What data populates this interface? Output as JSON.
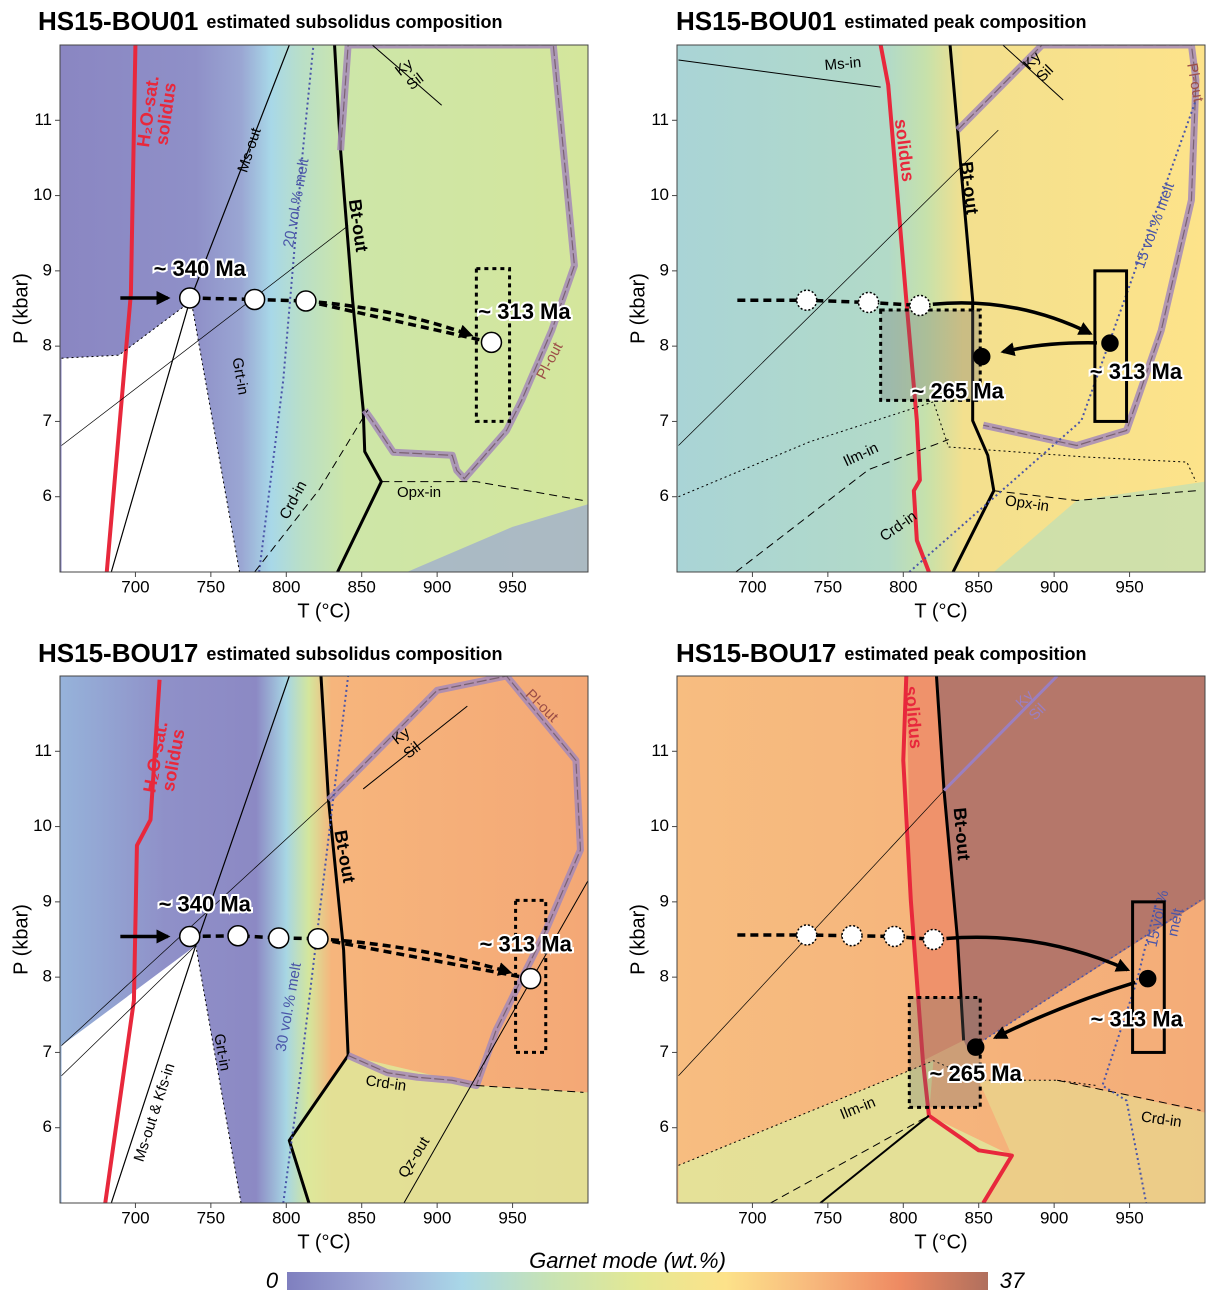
{
  "chart_data": [
    {
      "type": "phase-diagram",
      "title": "HS15-BOU01",
      "subtitle": "estimated subsolidus composition",
      "x_label": "T (°C)",
      "y_label": "P (kbar)",
      "xlim": [
        650,
        1000
      ],
      "ylim": [
        5,
        12
      ],
      "xticks": [
        700,
        750,
        800,
        850,
        900,
        950
      ],
      "yticks": [
        6,
        7,
        8,
        9,
        10,
        11
      ],
      "lines": [
        {
          "name": [
            "H₂O-sat.",
            "solidus"
          ],
          "color": "#e8283c",
          "style": "solid",
          "width": 4,
          "label_bold": true,
          "x": [
            681,
            697,
            700
          ],
          "y": [
            5,
            8.7,
            12
          ]
        },
        {
          "name": "Bt-out",
          "color": "#000000",
          "style": "solid",
          "width": 3,
          "label_bold": true,
          "x": [
            832,
            836,
            844,
            851,
            852,
            863,
            834
          ],
          "y": [
            12,
            10.6,
            8.6,
            7.15,
            6.6,
            6.2,
            5
          ]
        },
        {
          "name": "Pl-out",
          "color": "#a58ab8",
          "label_color": "#9c4f48",
          "style": "solid",
          "width": 7,
          "x": [
            836,
            841,
            977,
            991,
            976,
            956,
            946,
            918,
            913,
            910,
            871,
            857,
            852
          ],
          "y": [
            10.6,
            12,
            12,
            9.07,
            8.21,
            7.28,
            6.88,
            6.24,
            6.35,
            6.55,
            6.59,
            7.01,
            7.15
          ]
        },
        {
          "name": "Ms-out",
          "color": "#000000",
          "style": "solid",
          "width": 1.2,
          "x": [
            684,
            736,
            802
          ],
          "y": [
            5,
            8.6,
            12
          ]
        },
        {
          "name": "Grt-in",
          "color": "#000000",
          "style": "dotted",
          "width": 1,
          "x": [
            769,
            737
          ],
          "y": [
            5,
            8.6
          ]
        },
        {
          "color": "#000000",
          "style": "dotted",
          "width": 1,
          "x": [
            651,
            689,
            737
          ],
          "y": [
            7.84,
            7.88,
            8.6
          ]
        },
        {
          "name": "20 vol.% melt",
          "color": "#4a55a8",
          "style": "dotted",
          "width": 2,
          "x": [
            782,
            798,
            811,
            818
          ],
          "y": [
            5,
            7.55,
            10.6,
            12
          ]
        },
        {
          "name": "Crd-in",
          "color": "#000000",
          "style": "dashed",
          "width": 1,
          "x": [
            779,
            822,
            854
          ],
          "y": [
            5,
            6.1,
            7.15
          ]
        },
        {
          "name": "Opx-in",
          "color": "#000000",
          "style": "dashed",
          "width": 1,
          "x": [
            863,
            926,
            997
          ],
          "y": [
            6.2,
            6.2,
            5.95
          ]
        },
        {
          "name": [
            "Ky",
            "Sil"
          ],
          "color": "#000000",
          "style": "solid",
          "width": 1,
          "x": [
            857,
            903
          ],
          "y": [
            12,
            11.2
          ]
        },
        {
          "color": "#000000",
          "style": "solid",
          "width": 0.7,
          "x": [
            651,
            841
          ],
          "y": [
            6.68,
            9.6
          ]
        }
      ],
      "points": {
        "x": [
          736,
          779,
          813,
          936
        ],
        "y": [
          8.64,
          8.62,
          8.6,
          8.05
        ],
        "fill": [
          "#ffffff",
          "#ffffff",
          "#ffffff",
          "#ffffff"
        ],
        "labels": [
          "~ 340 Ma",
          null,
          null,
          "~ 313 Ma"
        ]
      },
      "boxes": [
        {
          "style": "dotted",
          "x": [
            926,
            948
          ],
          "y": [
            7.0,
            9.03
          ]
        }
      ]
    },
    {
      "type": "phase-diagram",
      "title": "HS15-BOU01",
      "subtitle": "estimated peak composition",
      "x_label": "T (°C)",
      "y_label": "P (kbar)",
      "xlim": [
        650,
        1000
      ],
      "ylim": [
        5,
        12
      ],
      "xticks": [
        700,
        750,
        800,
        850,
        900,
        950
      ],
      "yticks": [
        6,
        7,
        8,
        9,
        10,
        11
      ],
      "lines": [
        {
          "name": "solidus",
          "color": "#e8283c",
          "style": "solid",
          "width": 4,
          "label_bold": true,
          "x": [
            785,
            790,
            802,
            809,
            811,
            807,
            809,
            817
          ],
          "y": [
            12,
            11.47,
            8.61,
            7.01,
            6.22,
            6.08,
            5.42,
            5
          ]
        },
        {
          "name": "Bt-out",
          "color": "#000000",
          "style": "solid",
          "width": 3,
          "label_bold": true,
          "x": [
            831,
            836,
            846,
            846,
            856,
            860,
            833
          ],
          "y": [
            12,
            10.87,
            8.61,
            7.01,
            6.55,
            6.08,
            5
          ]
        },
        {
          "name": "Pl-out",
          "color": "#a58ab8",
          "label_color": "#9c4f48",
          "style": "solid",
          "width": 7,
          "x": [
            836,
            892,
            991,
            994,
            991,
            971,
            955,
            948,
            915,
            853
          ],
          "y": [
            10.87,
            12,
            12,
            11.53,
            9.94,
            8.21,
            7.28,
            6.88,
            6.68,
            6.95
          ]
        },
        {
          "name": "Ms-in",
          "color": "#000000",
          "style": "solid",
          "width": 1,
          "x": [
            651,
            785
          ],
          "y": [
            11.8,
            11.44
          ]
        },
        {
          "name": "Ilm-in",
          "color": "#000000",
          "style": "dotted",
          "width": 1,
          "x": [
            651,
            738,
            820,
            830,
            919,
            988,
            994
          ],
          "y": [
            6.0,
            6.73,
            7.26,
            6.66,
            6.53,
            6.46,
            6.2
          ]
        },
        {
          "name": "Crd-in",
          "color": "#000000",
          "style": "dashed",
          "width": 1,
          "x": [
            689,
            777,
            830
          ],
          "y": [
            5,
            6.36,
            6.76
          ]
        },
        {
          "name": "Opx-in",
          "color": "#000000",
          "style": "dashed",
          "width": 1,
          "x": [
            860,
            915,
            994
          ],
          "y": [
            6.08,
            5.95,
            6.08
          ]
        },
        {
          "name": "15 vol.% melt",
          "color": "#4a55a8",
          "style": "dotted",
          "width": 2,
          "x": [
            804,
            918,
            994
          ],
          "y": [
            5,
            7.01,
            11.27
          ]
        },
        {
          "color": "#000000",
          "style": "solid",
          "width": 0.7,
          "x": [
            651,
            863
          ],
          "y": [
            6.68,
            10.87
          ]
        },
        {
          "name": [
            "Ky",
            "Sil"
          ],
          "color": "#000000",
          "style": "solid",
          "width": 1,
          "x": [
            866,
            906
          ],
          "y": [
            12,
            11.27
          ]
        }
      ],
      "points": {
        "x": [
          736,
          777,
          811,
          937,
          852
        ],
        "y": [
          8.61,
          8.58,
          8.54,
          8.04,
          7.86
        ],
        "fill": [
          "#ffffff",
          "#ffffff",
          "#ffffff",
          "#000000",
          "#000000"
        ],
        "labels": [
          null,
          null,
          null,
          "~ 313 Ma",
          "~ 265 Ma"
        ]
      },
      "boxes": [
        {
          "style": "dotted",
          "x": [
            785,
            851
          ],
          "y": [
            7.28,
            8.48
          ]
        },
        {
          "style": "solid",
          "x": [
            927,
            948
          ],
          "y": [
            7.0,
            9.0
          ]
        }
      ]
    },
    {
      "type": "phase-diagram",
      "title": "HS15-BOU17",
      "subtitle": "estimated subsolidus composition",
      "x_label": "T (°C)",
      "y_label": "P (kbar)",
      "xlim": [
        650,
        1000
      ],
      "ylim": [
        5,
        12
      ],
      "xticks": [
        700,
        750,
        800,
        850,
        900,
        950
      ],
      "yticks": [
        6,
        7,
        8,
        9,
        10,
        11
      ],
      "lines": [
        {
          "name": [
            "H₂O-sat.",
            "solidus"
          ],
          "color": "#e8283c",
          "style": "solid",
          "width": 4,
          "label_bold": true,
          "x": [
            680,
            699,
            701,
            710,
            716
          ],
          "y": [
            5,
            7.69,
            9.75,
            10.09,
            11.95
          ]
        },
        {
          "name": "Bt-out",
          "color": "#000000",
          "style": "solid",
          "width": 3,
          "label_bold": true,
          "x": [
            823,
            828,
            838,
            841,
            802,
            815
          ],
          "y": [
            12,
            10.35,
            8.36,
            6.96,
            5.83,
            5
          ]
        },
        {
          "name": "Pl-out",
          "color": "#a58ab8",
          "label_color": "#9c4f48",
          "style": "solid",
          "width": 7,
          "x": [
            828,
            900,
            946,
            992,
            995,
            972,
            939,
            926,
            910,
            887,
            867,
            841
          ],
          "y": [
            10.35,
            11.81,
            12,
            10.88,
            9.69,
            8.62,
            7.29,
            6.56,
            6.63,
            6.67,
            6.73,
            6.96
          ]
        },
        {
          "name": "Crd-in",
          "color": "#000000",
          "style": "dashed",
          "width": 1,
          "x": [
            926,
            997
          ],
          "y": [
            6.56,
            6.47
          ]
        },
        {
          "name": "Ms-out & Kfs-in",
          "color": "#000000",
          "style": "solid",
          "width": 1.2,
          "x": [
            684,
            740,
            802
          ],
          "y": [
            5,
            8.42,
            12
          ]
        },
        {
          "name": "Grt-in",
          "color": "#000000",
          "style": "dotted",
          "width": 1,
          "x": [
            770,
            740
          ],
          "y": [
            5,
            8.42
          ]
        },
        {
          "name": "30 vol.% melt",
          "color": "#4a55a8",
          "style": "dotted",
          "width": 2,
          "x": [
            798,
            808,
            831,
            841
          ],
          "y": [
            5,
            6.5,
            10.35,
            12
          ]
        },
        {
          "name": "Qz-out",
          "color": "#000000",
          "style": "solid",
          "width": 1,
          "x": [
            878,
            1000
          ],
          "y": [
            5,
            9.28
          ]
        },
        {
          "name": [
            "Ky",
            "Sil"
          ],
          "color": "#000000",
          "style": "solid",
          "width": 1,
          "x": [
            851,
            920
          ],
          "y": [
            10.5,
            11.6
          ]
        },
        {
          "color": "#000000",
          "style": "solid",
          "width": 0.7,
          "x": [
            651,
            828
          ],
          "y": [
            7.09,
            10.35
          ]
        },
        {
          "color": "#000000",
          "style": "solid",
          "width": 0.7,
          "x": [
            651,
            740
          ],
          "y": [
            6.69,
            8.42
          ]
        }
      ],
      "points": {
        "x": [
          736,
          768,
          795,
          821,
          962
        ],
        "y": [
          8.54,
          8.55,
          8.52,
          8.51,
          7.98
        ],
        "fill": [
          "#ffffff",
          "#ffffff",
          "#ffffff",
          "#ffffff",
          "#ffffff"
        ],
        "labels": [
          "~ 340 Ma",
          null,
          null,
          null,
          "~ 313 Ma"
        ]
      },
      "boxes": [
        {
          "style": "dotted",
          "x": [
            952,
            972
          ],
          "y": [
            7.0,
            9.02
          ]
        }
      ]
    },
    {
      "type": "phase-diagram",
      "title": "HS15-BOU17",
      "subtitle": "estimated peak composition",
      "x_label": "T (°C)",
      "y_label": "P (kbar)",
      "xlim": [
        650,
        1000
      ],
      "ylim": [
        5,
        12
      ],
      "xticks": [
        700,
        750,
        800,
        850,
        900,
        950
      ],
      "yticks": [
        6,
        7,
        8,
        9,
        10,
        11
      ],
      "lines": [
        {
          "name": "solidus",
          "color": "#e8283c",
          "style": "solid",
          "width": 4,
          "label_bold": true,
          "x": [
            802,
            800,
            805,
            813,
            817,
            850,
            872,
            853
          ],
          "y": [
            12,
            10.88,
            9.02,
            6.89,
            6.16,
            5.7,
            5.63,
            5
          ]
        },
        {
          "name": "Bt-out",
          "color": "#000000",
          "style": "solid",
          "width": 3,
          "label_bold": true,
          "x": [
            822,
            827,
            836,
            840
          ],
          "y": [
            12,
            10.48,
            8.49,
            7.16
          ]
        },
        {
          "name": [
            "Ky",
            "Sil"
          ],
          "color": "#9b7fc0",
          "style": "solid",
          "width": 3,
          "x": [
            827,
            902
          ],
          "y": [
            10.48,
            12
          ]
        },
        {
          "name": "Ilm-in",
          "color": "#000000",
          "style": "dotted",
          "width": 1,
          "x": [
            651,
            820,
            850,
            902,
            928
          ],
          "y": [
            5.5,
            6.89,
            6.63,
            6.63,
            6.56
          ]
        },
        {
          "name": "Crd-in",
          "color": "#000000",
          "style": "dashed",
          "width": 1,
          "x": [
            902,
            997
          ],
          "y": [
            6.63,
            6.23
          ]
        },
        {
          "color": "#000000",
          "style": "dashed",
          "width": 1,
          "x": [
            712,
            817
          ],
          "y": [
            5,
            6.16
          ]
        },
        {
          "color": "#000000",
          "style": "solid",
          "width": 2,
          "x": [
            745,
            817
          ],
          "y": [
            5,
            6.16
          ]
        },
        {
          "name": [
            "15 vol.%",
            "melt"
          ],
          "color": "#4a55a8",
          "style": "dotted",
          "width": 2,
          "x": [
            968,
            955,
            932,
            948,
            961
          ],
          "y": [
            9.02,
            7.96,
            6.56,
            6.36,
            5.0
          ]
        },
        {
          "color": "#4a55a8",
          "style": "dotted",
          "width": 1.5,
          "x": [
            843,
            997
          ],
          "y": [
            7.03,
            9.02
          ]
        },
        {
          "color": "#000000",
          "style": "solid",
          "width": 0.7,
          "x": [
            651,
            827
          ],
          "y": [
            6.69,
            10.48
          ]
        }
      ],
      "points": {
        "x": [
          736,
          766,
          794,
          820,
          962,
          848
        ],
        "y": [
          8.56,
          8.55,
          8.54,
          8.5,
          7.98,
          7.07
        ],
        "fill": [
          "#ffffff",
          "#ffffff",
          "#ffffff",
          "#ffffff",
          "#000000",
          "#000000"
        ],
        "labels": [
          null,
          null,
          null,
          null,
          "~ 313 Ma",
          "~ 265 Ma"
        ]
      },
      "boxes": [
        {
          "style": "dotted",
          "x": [
            804,
            851
          ],
          "y": [
            6.27,
            7.73
          ]
        },
        {
          "style": "solid",
          "x": [
            952,
            973
          ],
          "y": [
            7.0,
            9.0
          ]
        }
      ]
    }
  ],
  "colorbar": {
    "label": "Garnet mode (wt.%)",
    "lim": [
      0,
      37
    ],
    "ticks": [
      0,
      37
    ],
    "colors": [
      "#7f7fbf",
      "#9fa9d6",
      "#a9d7e8",
      "#c7e3b4",
      "#e3e894",
      "#fde28a",
      "#f7b87c",
      "#ee8a62",
      "#b06f5d"
    ]
  }
}
